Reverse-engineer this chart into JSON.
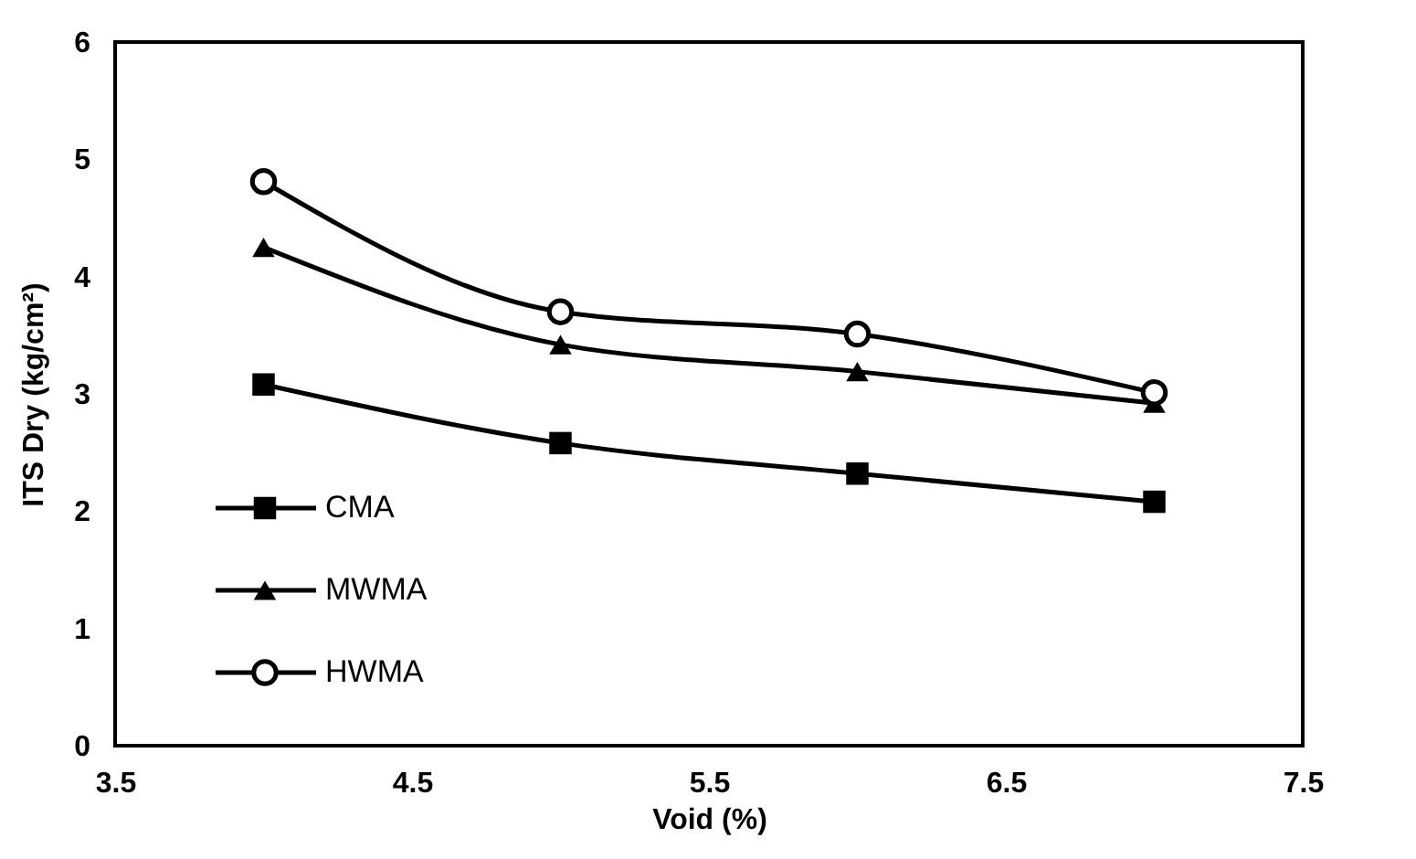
{
  "chart_data": {
    "type": "line",
    "xlabel": "Void (%)",
    "ylabel": "ITS Dry (kg/cm²)",
    "x": [
      4,
      5,
      6,
      7
    ],
    "series": [
      {
        "name": "CMA",
        "color": "#000000",
        "marker": "square",
        "values": [
          3.08,
          2.58,
          2.32,
          2.08
        ]
      },
      {
        "name": "MWMA",
        "color": "#000000",
        "marker": "triangle",
        "values": [
          4.25,
          3.42,
          3.19,
          2.92
        ]
      },
      {
        "name": "HWMA",
        "color": "#000000",
        "marker": "circle",
        "values": [
          4.81,
          3.7,
          3.51,
          3.01
        ]
      }
    ],
    "xlim": [
      3.5,
      7.5
    ],
    "xticks": [
      3.5,
      4.5,
      5.5,
      6.5,
      7.5
    ],
    "ylim": [
      0,
      6
    ],
    "yticks": [
      0,
      1,
      2,
      3,
      4,
      5,
      6
    ],
    "grid": false,
    "legend": "bottom left",
    "line_style": "solid"
  }
}
